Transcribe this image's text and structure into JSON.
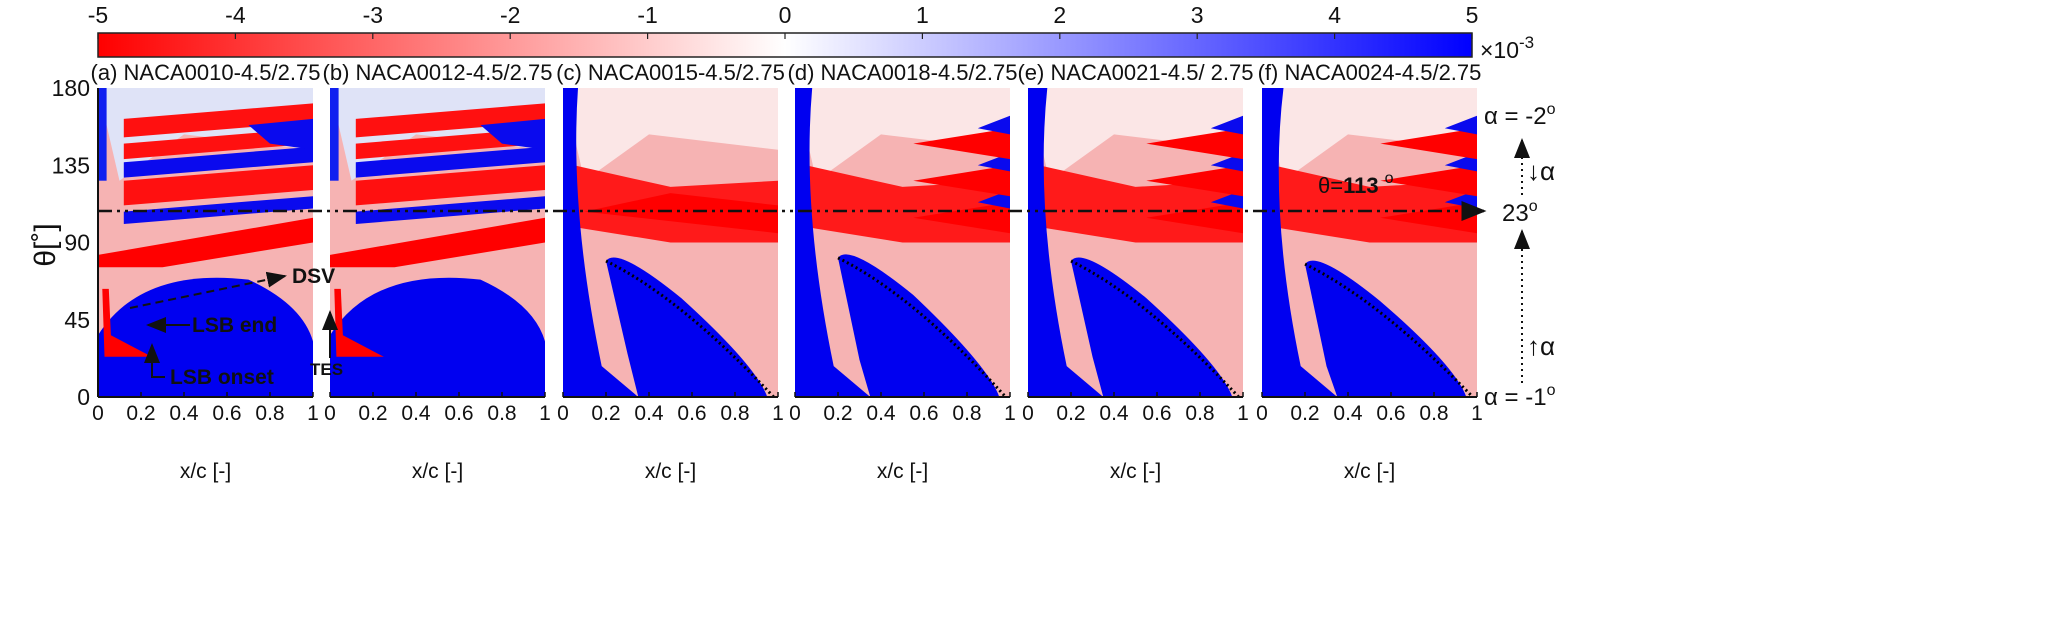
{
  "chart_data": {
    "type": "heatmap",
    "colorbar": {
      "min": -5,
      "max": 5,
      "ticks": [
        "-5",
        "-4",
        "-3",
        "-2",
        "-1",
        "0",
        "1",
        "2",
        "3",
        "4",
        "5"
      ],
      "multiplier_label": "×10",
      "multiplier_exp": "-3",
      "colors": {
        "negative": "#ff0000",
        "zero": "#ffffff",
        "positive": "#0000ff"
      }
    },
    "ylabel": "θ[˚]",
    "yticks": [
      "0",
      "45",
      "90",
      "135",
      "180"
    ],
    "ylim": [
      0,
      180
    ],
    "xlabel": "x/c [-]",
    "xticks": [
      "0",
      "0.2",
      "0.4",
      "0.6",
      "0.8",
      "1"
    ],
    "xlim": [
      0,
      1
    ],
    "panels": [
      {
        "title": "(a) NACA0010-4.5/2.75"
      },
      {
        "title": "(b) NACA0012-4.5/2.75"
      },
      {
        "title": "(c) NACA0015-4.5/2.75"
      },
      {
        "title": "(d) NACA0018-4.5/2.75"
      },
      {
        "title": "(e) NACA0021-4.5/  2.75"
      },
      {
        "title": "(f) NACA0024-4.5/2.75"
      }
    ],
    "reference_line": {
      "theta": 113,
      "label_prefix": "θ=",
      "label_value": "113",
      "label_unit": "o"
    },
    "annotations": {
      "dsv": "DSV",
      "lsb_end": "LSB end",
      "lsb_onset": "LSB onset",
      "tes": "TES"
    },
    "alpha_axis": {
      "top": "α = -2",
      "mid": "23",
      "bottom": "α = -1",
      "degree": "o",
      "down_label": "α",
      "up_label": "α"
    }
  }
}
